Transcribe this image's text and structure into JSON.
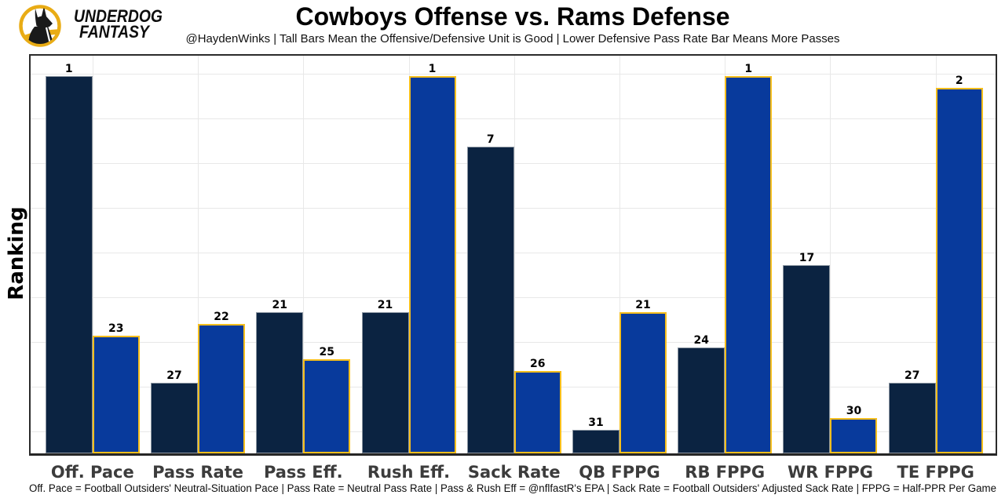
{
  "header": {
    "brand_line1": "UNDERDOG",
    "brand_line2": "FANTASY",
    "title": "Cowboys Offense vs. Rams Defense",
    "subtitle": "@HaydenWinks | Tall Bars Mean the Offensive/Defensive Unit is Good | Lower Defensive Pass Rate Bar Means More Passes"
  },
  "chart_data": {
    "type": "bar",
    "title": "Cowboys Offense vs. Rams Defense",
    "ylabel": "Ranking",
    "categories": [
      "Off. Pace",
      "Pass Rate",
      "Pass Eff.",
      "Rush Eff.",
      "Sack Rate",
      "QB FPPG",
      "RB FPPG",
      "WR FPPG",
      "TE FPPG"
    ],
    "series": [
      {
        "name": "Cowboys Offense",
        "color": "#0b2341",
        "edge_color": "#8d97a2",
        "ranks": [
          1,
          27,
          21,
          21,
          7,
          31,
          24,
          17,
          27
        ]
      },
      {
        "name": "Rams Defense",
        "color": "#083a9c",
        "edge_color": "#F6BE1C",
        "ranks": [
          23,
          22,
          25,
          1,
          26,
          21,
          1,
          30,
          2
        ]
      }
    ],
    "bar_height_rule": "bar height = 33 - rank (rank 1 is tallest)",
    "ylim": [
      0,
      34
    ],
    "grid": true,
    "legend_position": "none"
  },
  "footer": {
    "note": "Off. Pace = Football Outsiders' Neutral-Situation Pace | Pass Rate = Neutral Pass Rate | Pass & Rush Eff = @nflfastR's EPA | Sack Rate = Football Outsiders' Adjusted Sack Rate | FPPG = Half-PPR Per Game"
  }
}
